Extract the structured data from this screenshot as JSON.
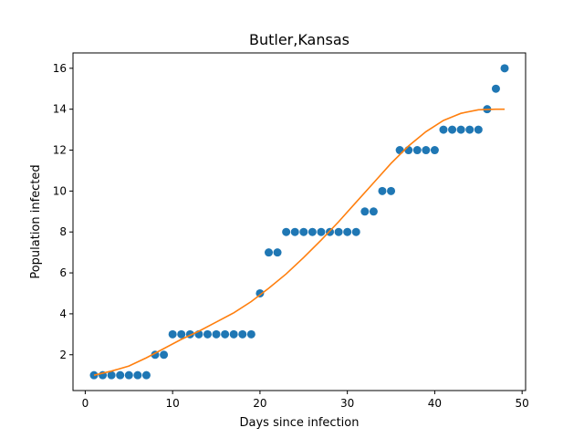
{
  "chart_data": {
    "type": "scatter",
    "title": "Butler,Kansas",
    "xlabel": "Days since infection",
    "ylabel": "Population infected",
    "xlim": [
      -1.4,
      50.4
    ],
    "ylim": [
      0.25,
      16.75
    ],
    "xticks": [
      0,
      10,
      20,
      30,
      40,
      50
    ],
    "yticks": [
      2,
      4,
      6,
      8,
      10,
      12,
      14,
      16
    ],
    "grid": false,
    "legend": "none",
    "series": [
      {
        "kind": "scatter",
        "color": "#1f77b4",
        "x": [
          1,
          2,
          3,
          4,
          5,
          6,
          7,
          8,
          9,
          10,
          11,
          12,
          13,
          14,
          15,
          16,
          17,
          18,
          19,
          20,
          21,
          22,
          23,
          24,
          25,
          26,
          27,
          28,
          29,
          30,
          31,
          32,
          33,
          34,
          35,
          36,
          37,
          38,
          39,
          40,
          41,
          42,
          43,
          44,
          45,
          46,
          47,
          48
        ],
        "y": [
          1,
          1,
          1,
          1,
          1,
          1,
          1,
          2,
          2,
          3,
          3,
          3,
          3,
          3,
          3,
          3,
          3,
          3,
          3,
          5,
          7,
          7,
          8,
          8,
          8,
          8,
          8,
          8,
          8,
          8,
          8,
          9,
          9,
          10,
          10,
          12,
          12,
          12,
          12,
          12,
          13,
          13,
          13,
          13,
          13,
          14,
          15,
          16
        ]
      },
      {
        "kind": "line",
        "color": "#ff7f0e",
        "x": [
          1,
          3,
          5,
          7,
          9,
          11,
          13,
          15,
          17,
          19,
          21,
          23,
          25,
          27,
          29,
          31,
          33,
          35,
          37,
          39,
          41,
          43,
          45,
          47,
          48
        ],
        "y": [
          1.0,
          1.2,
          1.45,
          1.85,
          2.3,
          2.75,
          3.15,
          3.6,
          4.05,
          4.6,
          5.25,
          5.95,
          6.75,
          7.6,
          8.5,
          9.45,
          10.4,
          11.35,
          12.2,
          12.9,
          13.45,
          13.8,
          13.97,
          14.0,
          14.0
        ]
      }
    ]
  }
}
